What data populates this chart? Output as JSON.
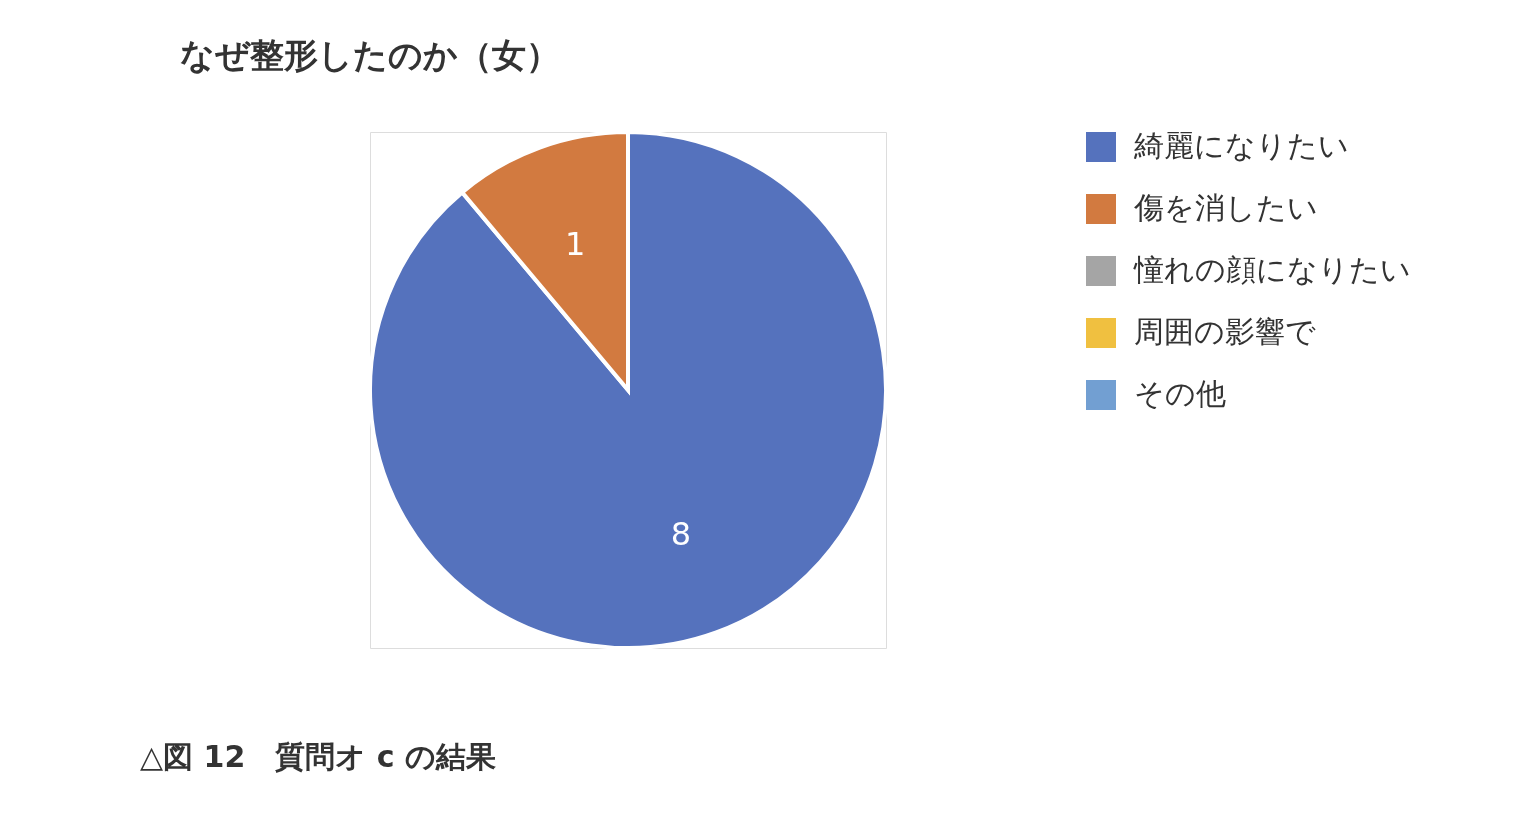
{
  "chart_data": {
    "type": "pie",
    "title": "なぜ整形したのか（女）",
    "categories": [
      "綺麗になりたい",
      "傷を消したい",
      "憧れの顔になりたい",
      "周囲の影響で",
      "その他"
    ],
    "values": [
      8,
      1,
      0,
      0,
      0
    ],
    "colors": [
      "#5572bd",
      "#d27a40",
      "#a5a5a5",
      "#f0c040",
      "#729fd2"
    ],
    "value_labels": [
      "8",
      "1",
      null,
      null,
      null
    ],
    "legend": "right",
    "annotations": [
      "△図 12　質問オ c の結果"
    ]
  }
}
